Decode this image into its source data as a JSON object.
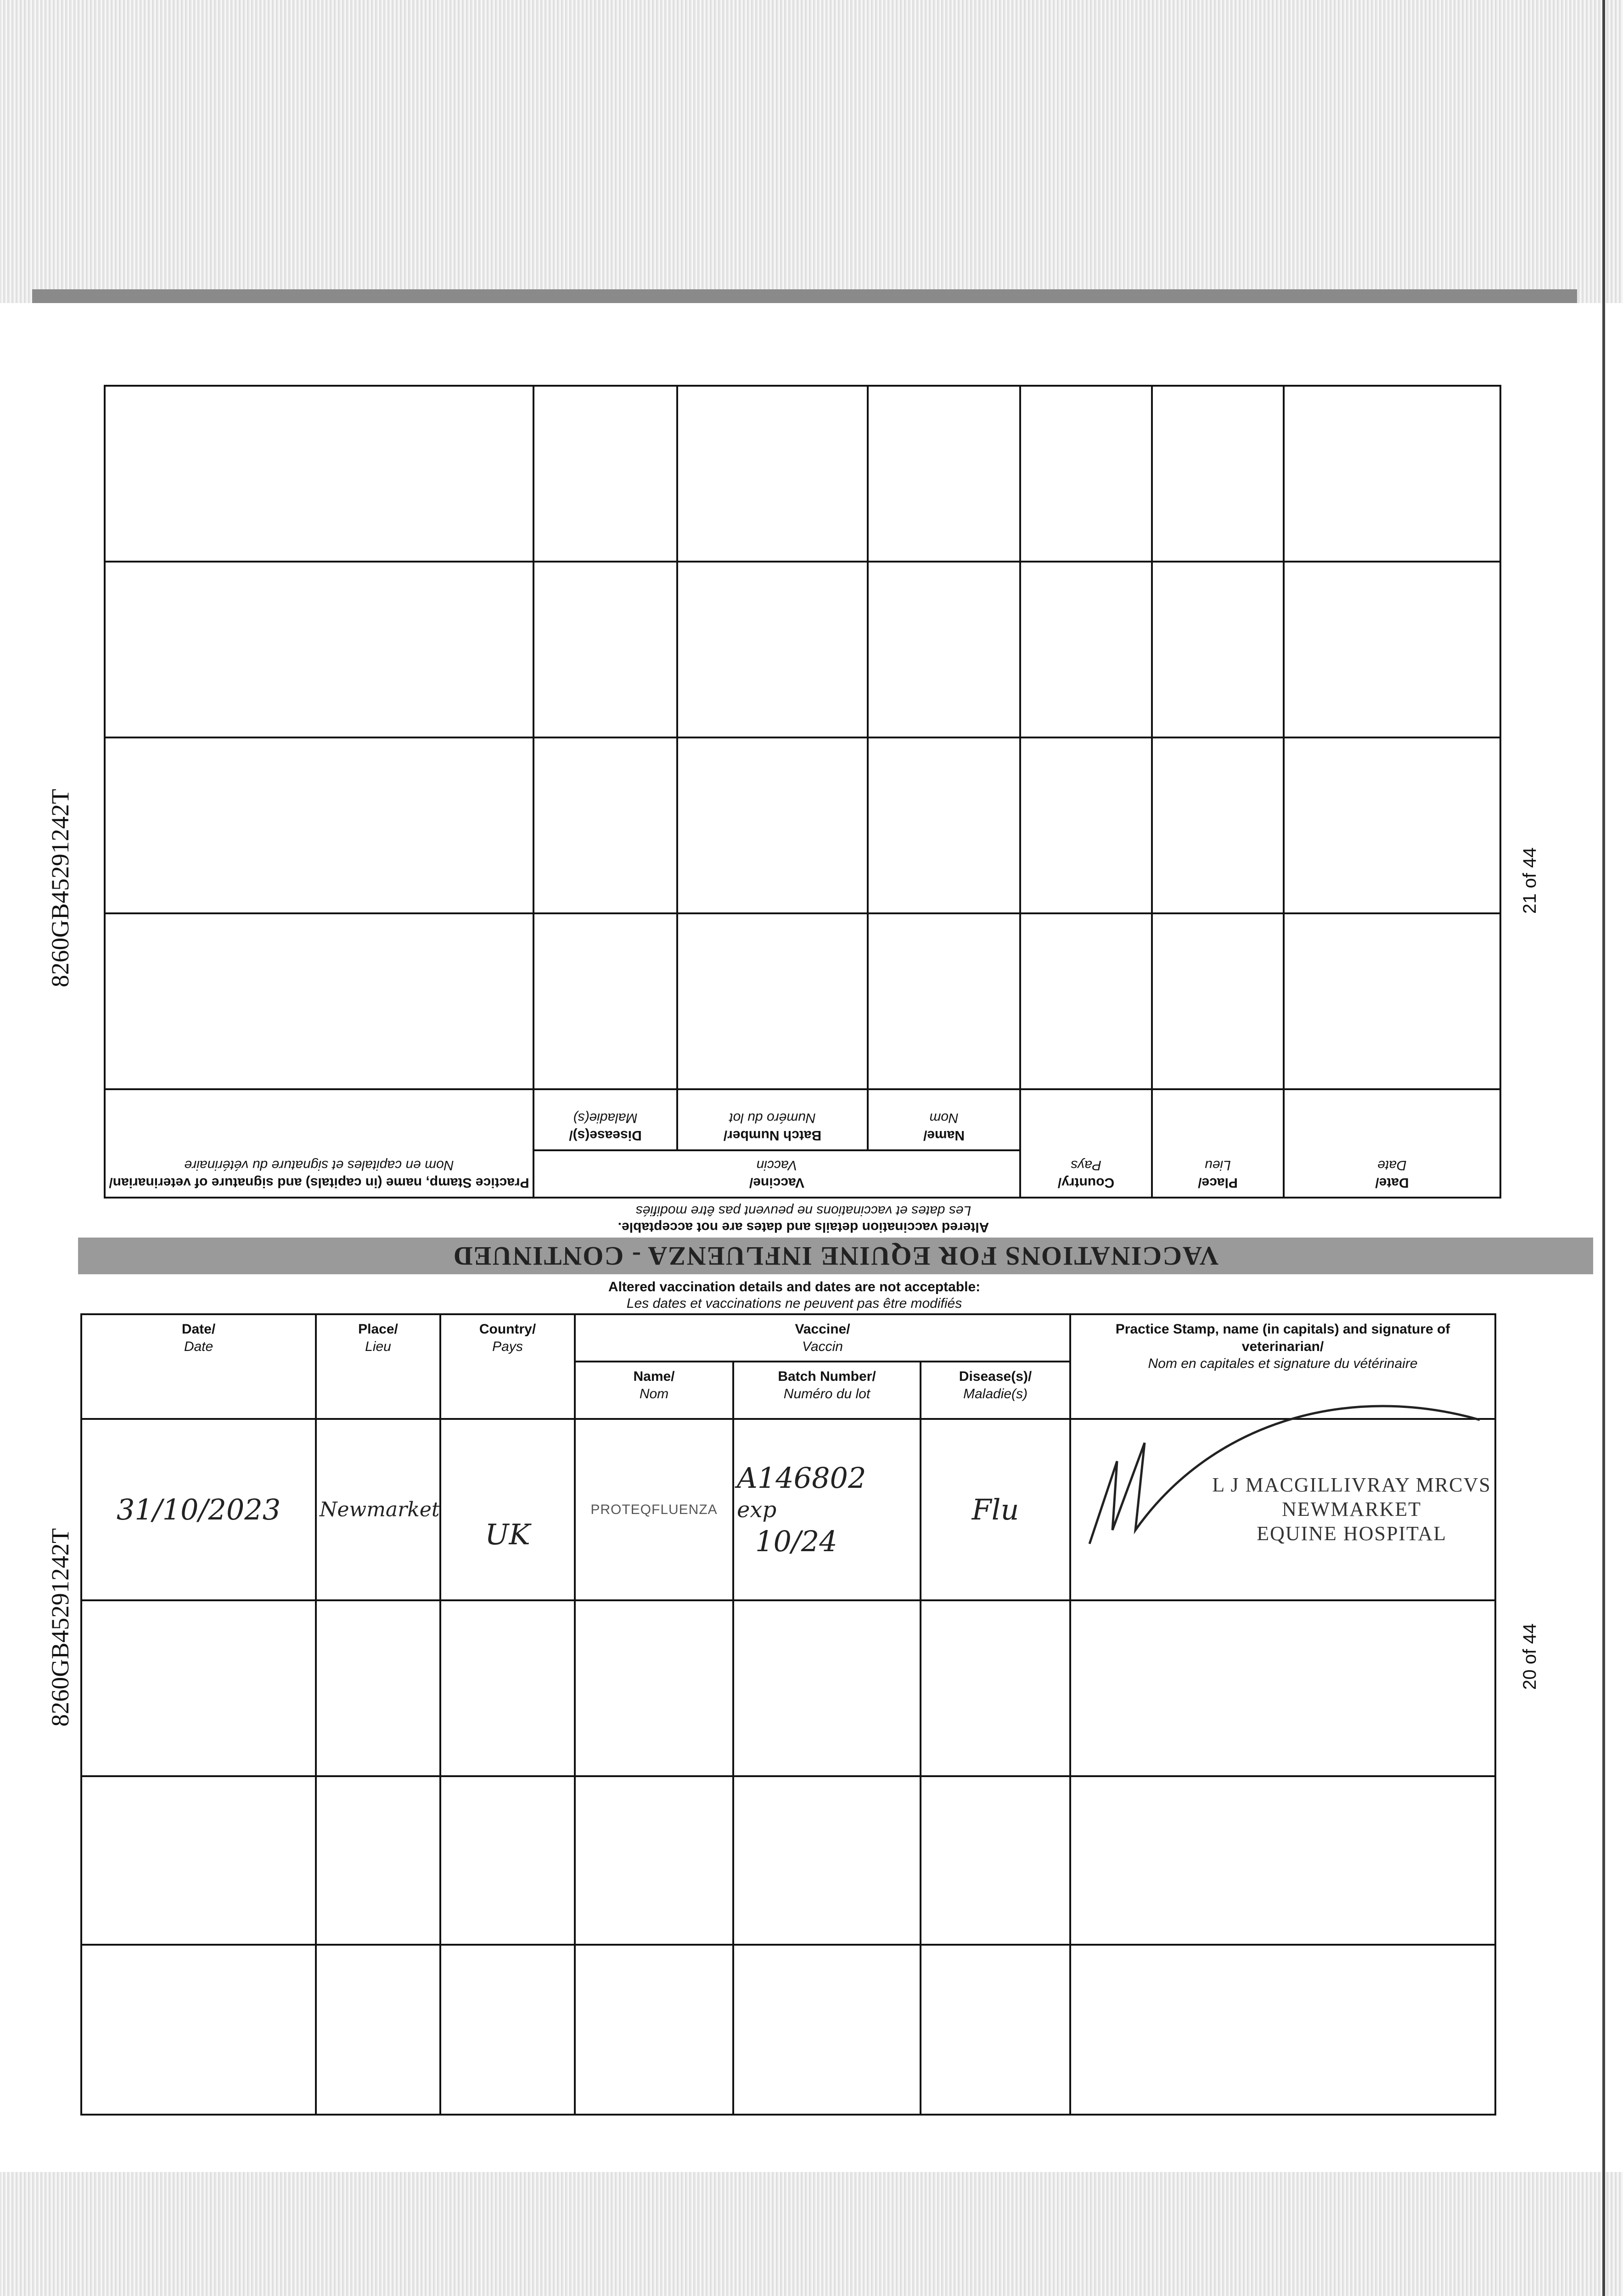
{
  "document": {
    "passport_id": "8260GB45291242T",
    "upper_page": {
      "page_number": "21 of 44",
      "title": "VACCINATIONS FOR EQUINE INFLUENZA - CONTINUED",
      "notice_en": "Altered vaccination details and dates are not acceptable.",
      "notice_fr": "Les dates et vaccinations ne peuvent pas être modifiés"
    },
    "lower_page": {
      "page_number": "20 of 44",
      "notice_en": "Altered vaccination details and dates are not acceptable:",
      "notice_fr": "Les dates et vaccinations ne peuvent pas être modifiés"
    },
    "headers": {
      "date_en": "Date/",
      "date_fr": "Date",
      "place_en": "Place/",
      "place_fr": "Lieu",
      "country_en": "Country/",
      "country_fr": "Pays",
      "vaccine_en": "Vaccine/",
      "vaccine_fr": "Vaccin",
      "name_en": "Name/",
      "name_fr": "Nom",
      "batch_en": "Batch Number/",
      "batch_fr": "Numéro du lot",
      "disease_en": "Disease(s)/",
      "disease_fr": "Maladie(s)",
      "practice_en": "Practice Stamp, name (in capitals) and signature of veterinarian/",
      "practice_fr": "Nom en capitales et signature du vétérinaire"
    },
    "entries": [
      {
        "date": "31/10/2023",
        "place": "Newmarket",
        "country": "UK",
        "vaccine_name": "PROTEQFLUENZA",
        "batch": "A146802",
        "batch_exp": "exp",
        "batch_exp_date": "10/24",
        "disease": "Flu",
        "stamp_line1": "L J MACGILLIVRAY MRCVS",
        "stamp_line2": "NEWMARKET",
        "stamp_line3": "EQUINE HOSPITAL"
      }
    ]
  }
}
